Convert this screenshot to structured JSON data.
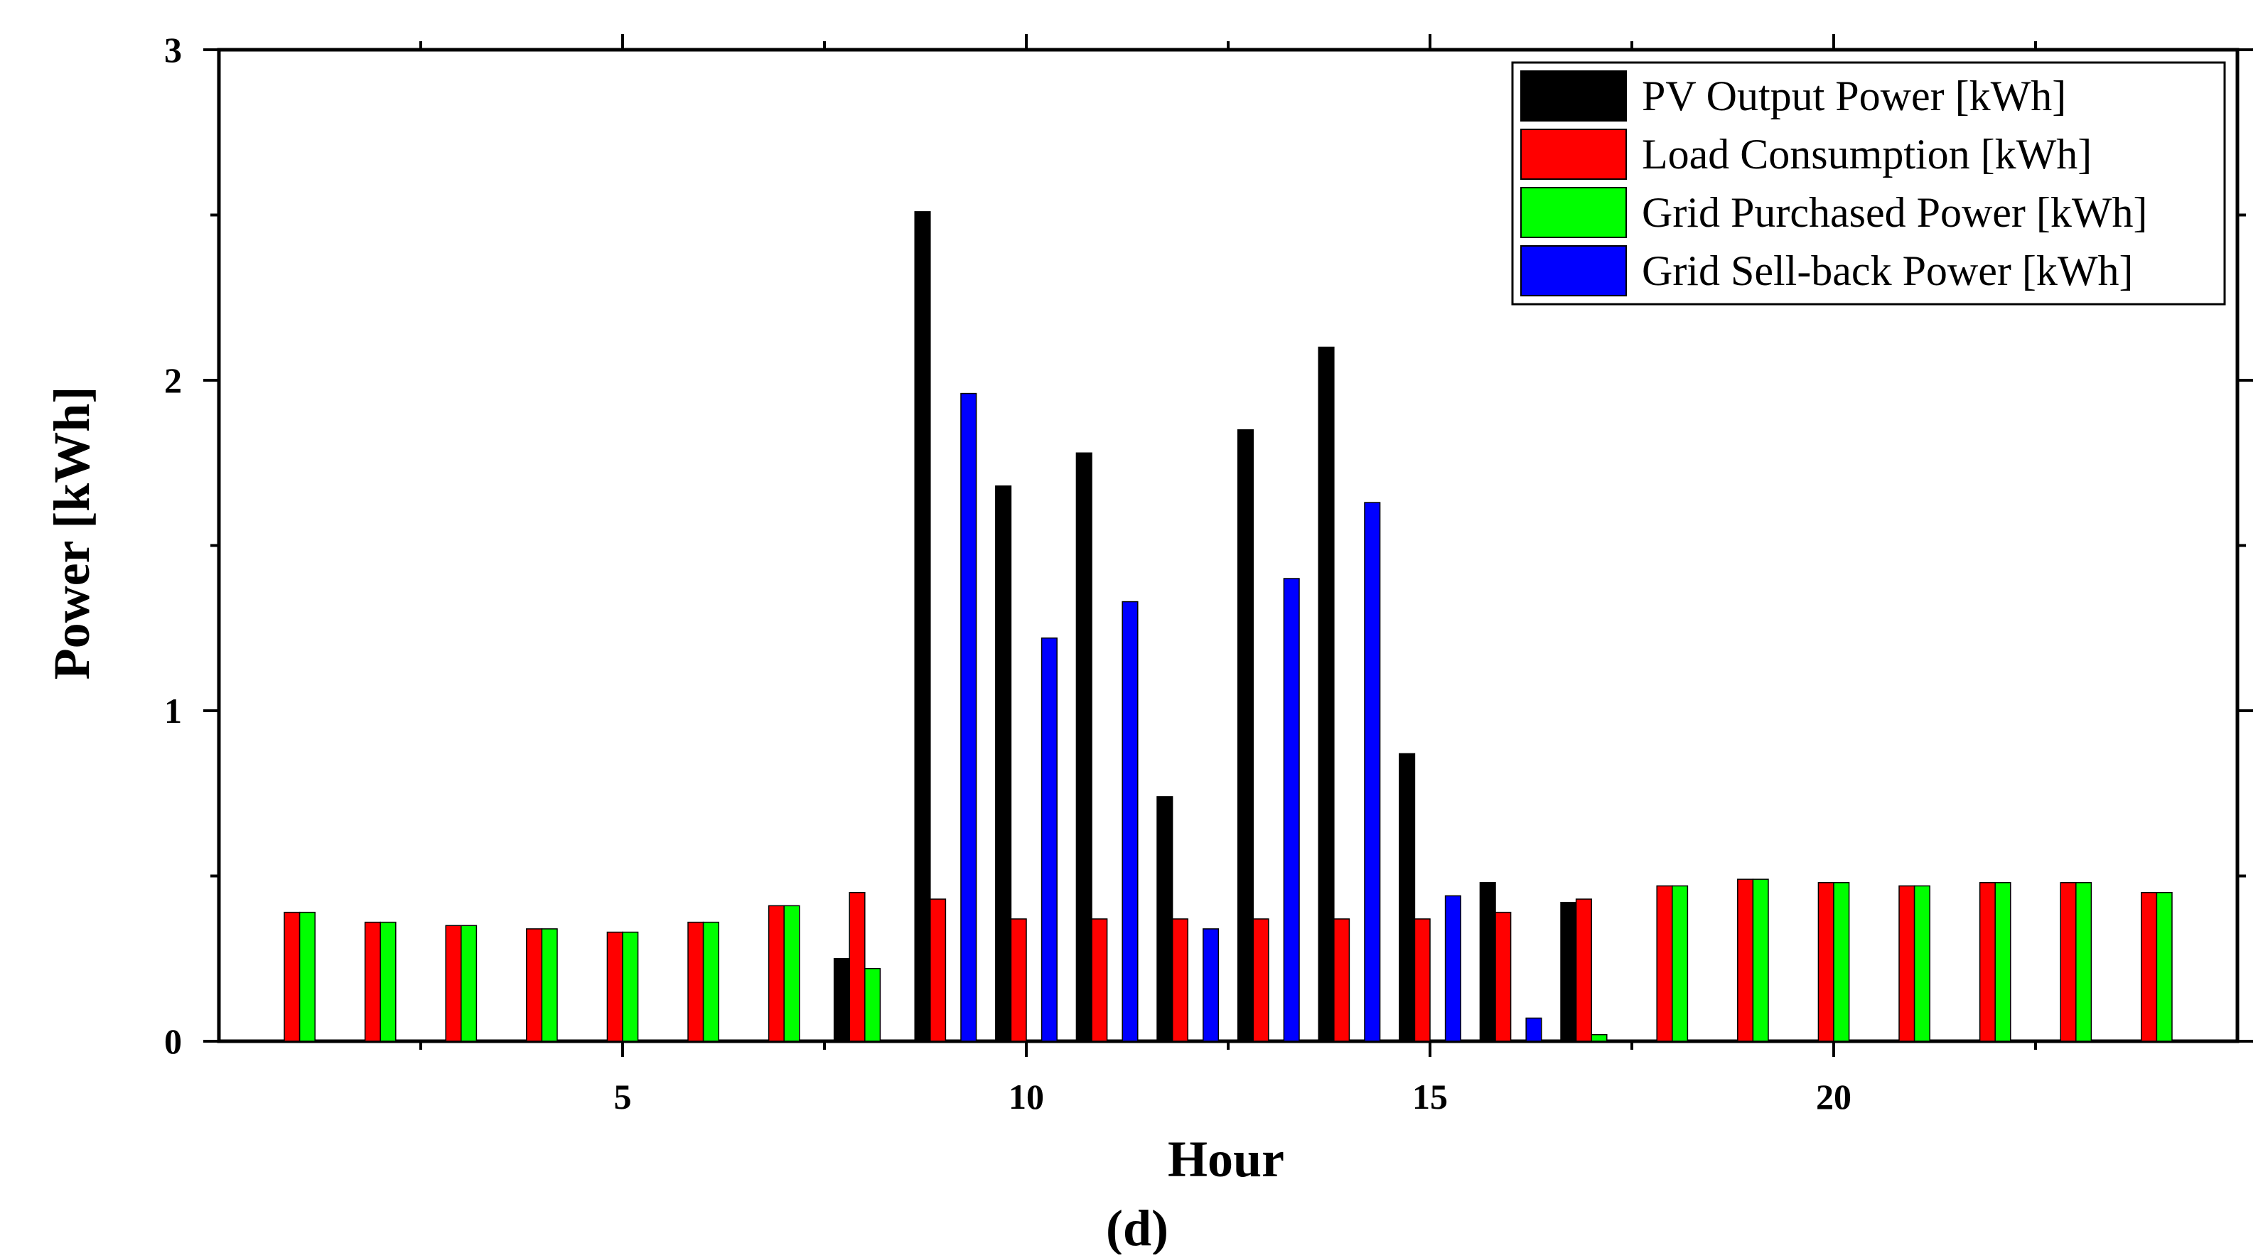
{
  "chart_data": {
    "type": "bar",
    "xlabel": "Hour",
    "ylabel": "Power [kWh]",
    "caption": "(d)",
    "x": [
      1,
      2,
      3,
      4,
      5,
      6,
      7,
      8,
      9,
      10,
      11,
      12,
      13,
      14,
      15,
      16,
      17,
      18,
      19,
      20,
      21,
      22,
      23,
      24
    ],
    "xlim": [
      0,
      25
    ],
    "ylim": [
      0,
      3
    ],
    "xticks": [
      5,
      10,
      15,
      20
    ],
    "yticks": [
      0,
      1,
      2,
      3
    ],
    "legend_position": "top-right",
    "series": [
      {
        "name": "PV Output Power [kWh]",
        "color": "#000000",
        "values": [
          0,
          0,
          0,
          0,
          0,
          0,
          0,
          0.25,
          2.51,
          1.68,
          1.78,
          0.74,
          1.85,
          2.1,
          0.87,
          0.48,
          0.42,
          0,
          0,
          0,
          0,
          0,
          0,
          0
        ]
      },
      {
        "name": "Load Consumption [kWh]",
        "color": "#ff0000",
        "values": [
          0.39,
          0.36,
          0.35,
          0.34,
          0.33,
          0.36,
          0.41,
          0.45,
          0.43,
          0.37,
          0.37,
          0.37,
          0.37,
          0.37,
          0.37,
          0.39,
          0.43,
          0.47,
          0.49,
          0.48,
          0.47,
          0.48,
          0.48,
          0.45
        ]
      },
      {
        "name": "Grid Purchased Power [kWh]",
        "color": "#00ff00",
        "values": [
          0.39,
          0.36,
          0.35,
          0.34,
          0.33,
          0.36,
          0.41,
          0.22,
          0,
          0,
          0,
          0,
          0,
          0,
          0,
          0,
          0.02,
          0.47,
          0.49,
          0.48,
          0.47,
          0.48,
          0.48,
          0.45
        ]
      },
      {
        "name": "Grid Sell-back Power [kWh]",
        "color": "#0000ff",
        "values": [
          0,
          0,
          0,
          0,
          0,
          0,
          0,
          0,
          1.96,
          1.22,
          1.33,
          0.34,
          1.4,
          1.63,
          0.44,
          0.07,
          0,
          0,
          0,
          0,
          0,
          0,
          0,
          0
        ]
      }
    ]
  }
}
